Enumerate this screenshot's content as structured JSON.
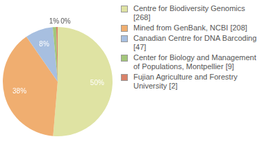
{
  "chart_data": {
    "type": "pie",
    "categories": [
      "Centre for Biodiversity Genomics [268]",
      "Mined from GenBank, NCBI [208]",
      "Canadian Centre for DNA Barcoding [47]",
      "Center for Biology and Management of Populations, Montpellier [9]",
      "Fujian Agriculture and Forestry University [2]"
    ],
    "values": [
      50,
      38,
      8,
      1,
      0.4
    ],
    "value_labels": [
      "50%",
      "38%",
      "8%",
      "1%",
      "0%"
    ],
    "colors": [
      "#dfe3a3",
      "#f0ae70",
      "#a7bfe0",
      "#a3c67a",
      "#d9826a"
    ],
    "legend": "right",
    "data_labels": true
  }
}
